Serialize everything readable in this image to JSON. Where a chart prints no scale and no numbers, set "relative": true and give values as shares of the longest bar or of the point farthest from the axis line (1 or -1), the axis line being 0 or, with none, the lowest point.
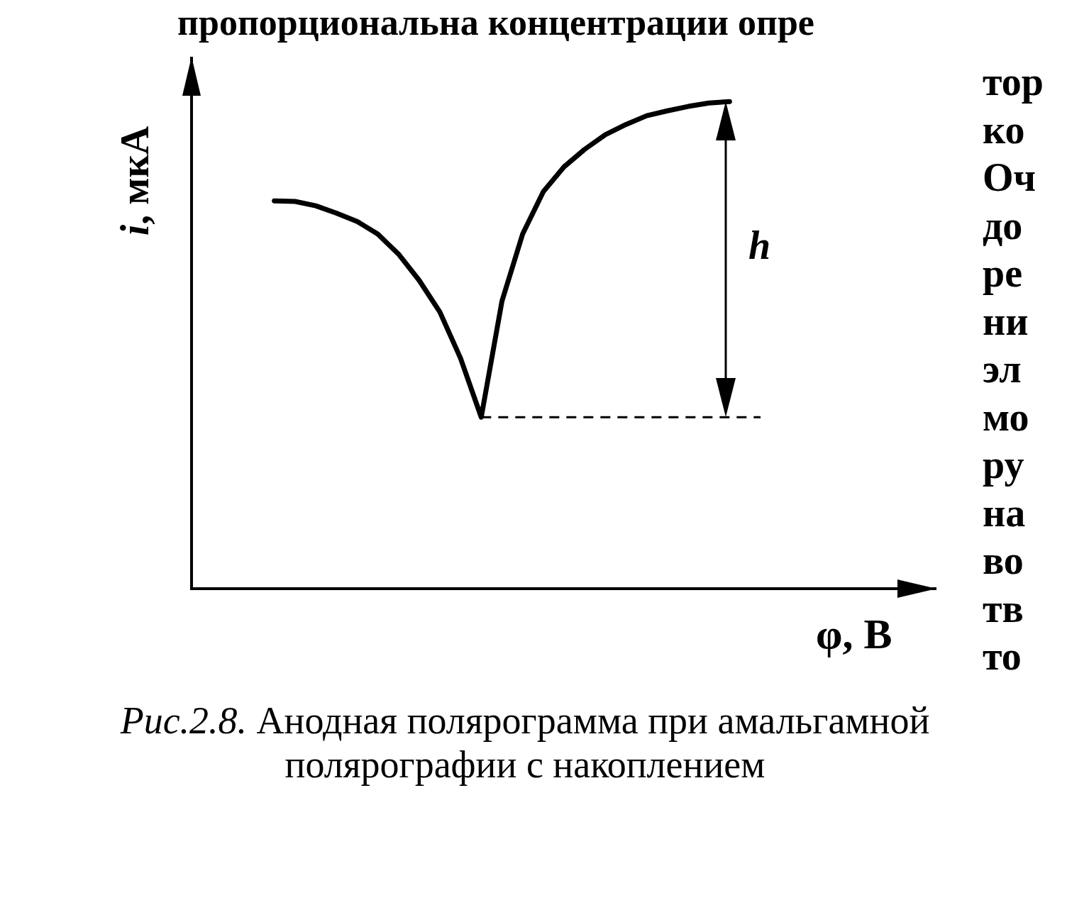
{
  "chart_data": {
    "type": "line",
    "relative": true,
    "tick_labels": false,
    "marker": "none",
    "line_style": "solid",
    "xlabel": "φ, В",
    "ylabel": "i, мкА",
    "categories": [
      null,
      null,
      null,
      null,
      null,
      null,
      null,
      null,
      null,
      null,
      null,
      null,
      null,
      null,
      null,
      null,
      null,
      null,
      null,
      null,
      null,
      null,
      null,
      null,
      null,
      null,
      null,
      null,
      null,
      null,
      null,
      null,
      null,
      null,
      null,
      null,
      null
    ],
    "series": [
      {
        "color": "#000000",
        "values": [
          null,
          null,
          null,
          null,
          0.796,
          0.795,
          0.786,
          0.771,
          0.754,
          0.728,
          0.687,
          0.633,
          0.568,
          0.473,
          0.352,
          0.59,
          0.728,
          0.815,
          0.866,
          0.902,
          0.932,
          0.953,
          0.971,
          0.981,
          0.99,
          0.997,
          1,
          null,
          null,
          null,
          null,
          null,
          null,
          null,
          null,
          null,
          null
        ]
      }
    ],
    "ref_lines": [
      {
        "axis": "y",
        "value": 0.352,
        "line_style": "dashed",
        "color": "#000000"
      }
    ],
    "annotations": [
      "пропорциональна концентрации опре",
      "Рис.2.8. Анодная полярограмма при амальгамной полярографии с накоплением",
      "h",
      "тор",
      "ко",
      "Оч",
      "до",
      "ре",
      "ни",
      "эл",
      "мо",
      "ру",
      "на",
      "во",
      "тв",
      "то"
    ]
  }
}
